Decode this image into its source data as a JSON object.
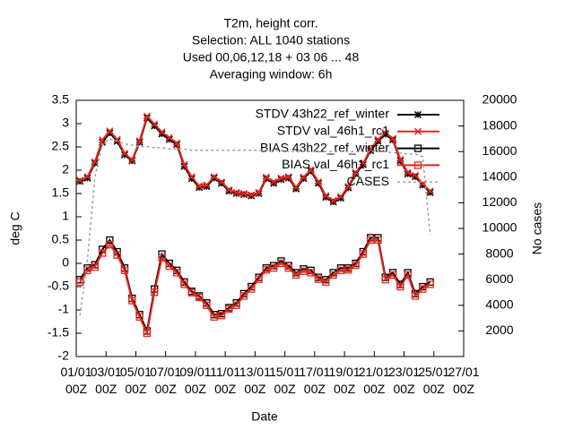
{
  "chart_data": {
    "type": "line",
    "title": [
      "T2m, height corr.",
      "Selection: ALL   1040 stations",
      "Used  00,06,12,18  + 03 06 ... 48",
      "Averaging window:  6h"
    ],
    "xlabel": "Date",
    "ylabel": "deg C",
    "y2label": "No cases",
    "x": [
      0.25,
      0.75,
      1.25,
      1.75,
      2.25,
      2.75,
      3.25,
      3.75,
      4.25,
      4.75,
      5.25,
      5.75,
      6.25,
      6.75,
      7.25,
      7.75,
      8.25,
      8.75,
      9.25,
      9.75,
      10.25,
      10.75,
      11.25,
      11.75,
      12.25,
      12.75,
      13.25,
      13.75,
      14.25,
      14.75,
      15.25,
      15.75,
      16.25,
      16.75,
      17.25,
      17.75,
      18.25,
      18.75,
      19.25,
      19.75,
      20.25,
      20.75,
      21.25,
      21.75,
      22.25,
      22.75,
      23.25,
      23.75
    ],
    "xlim": [
      0,
      26
    ],
    "xticks": [
      {
        "value": 0,
        "label": "01/01\n00Z"
      },
      {
        "value": 2,
        "label": "03/01\n00Z"
      },
      {
        "value": 4,
        "label": "05/01\n00Z"
      },
      {
        "value": 6,
        "label": "07/01\n00Z"
      },
      {
        "value": 8,
        "label": "09/01\n00Z"
      },
      {
        "value": 10,
        "label": "11/01\n00Z"
      },
      {
        "value": 12,
        "label": "13/01\n00Z"
      },
      {
        "value": 14,
        "label": "15/01\n00Z"
      },
      {
        "value": 16,
        "label": "17/01\n00Z"
      },
      {
        "value": 18,
        "label": "19/01\n00Z"
      },
      {
        "value": 20,
        "label": "21/01\n00Z"
      },
      {
        "value": 22,
        "label": "23/01\n00Z"
      },
      {
        "value": 24,
        "label": "25/01\n00Z"
      },
      {
        "value": 26,
        "label": "27/01\n00Z"
      }
    ],
    "ylim": [
      -2,
      3.5
    ],
    "yticks": [
      -2,
      -1.5,
      -1,
      -0.5,
      0,
      0.5,
      1,
      1.5,
      2,
      2.5,
      3,
      3.5
    ],
    "y2lim": [
      0,
      20000
    ],
    "y2ticks": [
      2000,
      4000,
      6000,
      8000,
      10000,
      12000,
      14000,
      16000,
      18000,
      20000
    ],
    "series": [
      {
        "name": "STDV 43h22_ref_winter",
        "color": "#000000",
        "marker": "star",
        "values": [
          1.76,
          1.83,
          2.15,
          2.6,
          2.8,
          2.62,
          2.33,
          2.2,
          2.6,
          3.12,
          2.95,
          2.78,
          2.66,
          2.55,
          2.08,
          1.82,
          1.63,
          1.65,
          1.83,
          1.72,
          1.55,
          1.5,
          1.48,
          1.45,
          1.5,
          1.82,
          1.72,
          1.8,
          1.83,
          1.6,
          1.82,
          1.98,
          1.72,
          1.42,
          1.32,
          1.4,
          1.62,
          1.92,
          2.12,
          2.42,
          2.62,
          2.77,
          2.65,
          2.2,
          1.92,
          1.86,
          1.68,
          1.52
        ]
      },
      {
        "name": "STDV val_46h1_rc1",
        "color": "#e8251c",
        "marker": "x",
        "values": [
          1.78,
          1.86,
          2.18,
          2.65,
          2.84,
          2.66,
          2.36,
          2.22,
          2.63,
          3.16,
          2.99,
          2.82,
          2.7,
          2.58,
          2.12,
          1.86,
          1.66,
          1.68,
          1.86,
          1.75,
          1.58,
          1.52,
          1.5,
          1.47,
          1.52,
          1.85,
          1.75,
          1.83,
          1.86,
          1.63,
          1.85,
          2.01,
          1.75,
          1.45,
          1.35,
          1.43,
          1.65,
          1.95,
          2.15,
          2.45,
          2.66,
          2.8,
          2.68,
          2.23,
          1.95,
          1.89,
          1.71,
          1.55
        ]
      },
      {
        "name": "BIAS 43h22_ref_winter",
        "color": "#000000",
        "marker": "square",
        "values": [
          -0.35,
          -0.1,
          -0.03,
          0.3,
          0.5,
          0.25,
          -0.1,
          -0.75,
          -1.1,
          -1.45,
          -0.55,
          0.2,
          0,
          -0.15,
          -0.4,
          -0.6,
          -0.7,
          -0.85,
          -1.1,
          -1.08,
          -0.95,
          -0.85,
          -0.65,
          -0.5,
          -0.3,
          -0.1,
          -0.05,
          0.05,
          -0.05,
          -0.2,
          -0.12,
          -0.15,
          -0.3,
          -0.35,
          -0.2,
          -0.1,
          -0.1,
          0,
          0.25,
          0.55,
          0.55,
          -0.3,
          -0.2,
          -0.45,
          -0.2,
          -0.65,
          -0.5,
          -0.4
        ]
      },
      {
        "name": "BIAS val_46h1_rc1",
        "color": "#e8251c",
        "marker": "square",
        "values": [
          -0.4,
          -0.15,
          -0.08,
          0.22,
          0.4,
          0.18,
          -0.15,
          -0.8,
          -1.15,
          -1.5,
          -0.62,
          0.12,
          -0.06,
          -0.2,
          -0.45,
          -0.63,
          -0.73,
          -0.9,
          -1.15,
          -1.12,
          -0.98,
          -0.9,
          -0.7,
          -0.55,
          -0.34,
          -0.14,
          -0.1,
          0,
          -0.1,
          -0.25,
          -0.17,
          -0.2,
          -0.34,
          -0.4,
          -0.25,
          -0.15,
          -0.14,
          -0.04,
          0.2,
          0.5,
          0.5,
          -0.35,
          -0.25,
          -0.5,
          -0.25,
          -0.7,
          -0.55,
          -0.45
        ]
      },
      {
        "name": "CASES",
        "color": "#a0a0a0",
        "dashed": true,
        "axis": "y2",
        "values": [
          3200,
          7500,
          14000,
          16600,
          17000,
          16800,
          16600,
          16500,
          16400,
          16400,
          16300,
          16300,
          16200,
          16200,
          16200,
          16100,
          16100,
          16100,
          16100,
          16100,
          16100,
          16100,
          16100,
          16100,
          16100,
          16100,
          16100,
          16100,
          16000,
          16000,
          16000,
          16000,
          16000,
          16000,
          16000,
          16000,
          16000,
          16000,
          16000,
          16000,
          16000,
          16000,
          15900,
          15900,
          15800,
          15800,
          15600,
          9500
        ]
      }
    ]
  }
}
